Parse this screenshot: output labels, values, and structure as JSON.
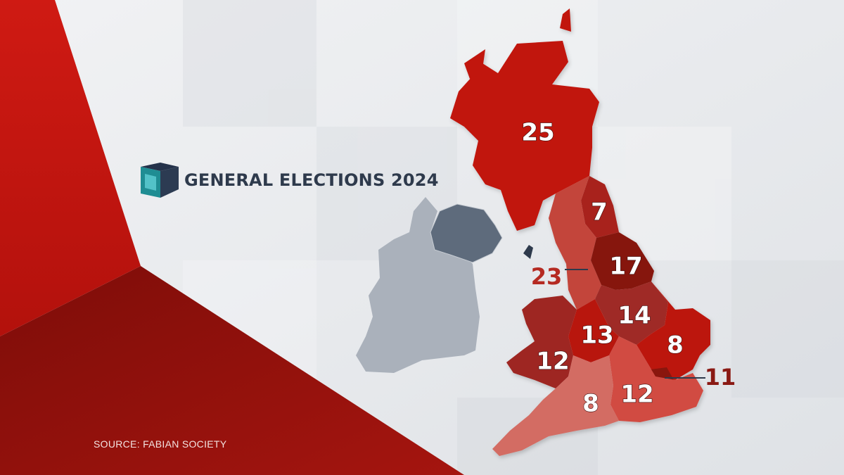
{
  "header": {
    "title": "GENERAL ELECTIONS 2024",
    "logo_icon": "news-cube-logo"
  },
  "source": "SOURCE: FABIAN SOCIETY",
  "colors": {
    "accent_red": "#c1140f",
    "dark_red": "#8e1712",
    "title_navy": "#2e3a4c",
    "ireland_grey": "#aab1bb",
    "northern_ireland": "#5e6b7c"
  },
  "regions": [
    {
      "name": "Scotland",
      "value": "25"
    },
    {
      "name": "North East",
      "value": "7"
    },
    {
      "name": "North West",
      "value": "23"
    },
    {
      "name": "Yorkshire and the Humber",
      "value": "17"
    },
    {
      "name": "East Midlands",
      "value": "14"
    },
    {
      "name": "West Midlands",
      "value": "13"
    },
    {
      "name": "Wales",
      "value": "12"
    },
    {
      "name": "East of England",
      "value": "8"
    },
    {
      "name": "London",
      "value": "11"
    },
    {
      "name": "South East",
      "value": "12"
    },
    {
      "name": "South West",
      "value": "8"
    }
  ]
}
